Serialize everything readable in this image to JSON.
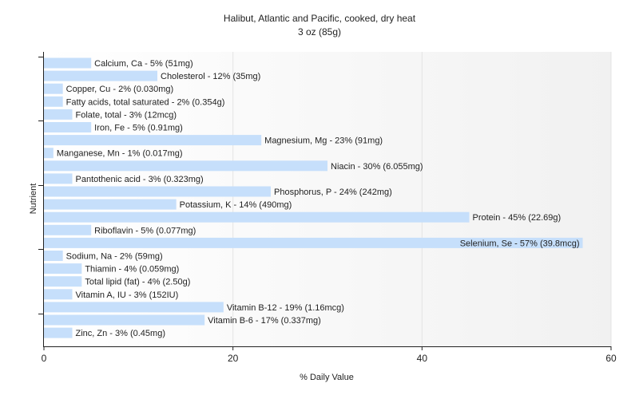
{
  "chart_data": {
    "type": "bar",
    "orientation": "horizontal",
    "title": "Halibut, Atlantic and Pacific, cooked, dry heat",
    "subtitle": "3 oz (85g)",
    "xlabel": "% Daily Value",
    "ylabel": "Nutrient",
    "xlim": [
      0,
      60
    ],
    "xticks": [
      "0",
      "20",
      "40",
      "60"
    ],
    "grid": true,
    "bar_color": "#c6dffb",
    "categories": [
      "Calcium, Ca",
      "Cholesterol",
      "Copper, Cu",
      "Fatty acids, total saturated",
      "Folate, total",
      "Iron, Fe",
      "Magnesium, Mg",
      "Manganese, Mn",
      "Niacin",
      "Pantothenic acid",
      "Phosphorus, P",
      "Potassium, K",
      "Protein",
      "Riboflavin",
      "Selenium, Se",
      "Sodium, Na",
      "Thiamin",
      "Total lipid (fat)",
      "Vitamin A, IU",
      "Vitamin B-12",
      "Vitamin B-6",
      "Zinc, Zn"
    ],
    "values": [
      5,
      12,
      2,
      2,
      3,
      5,
      23,
      1,
      30,
      3,
      24,
      14,
      45,
      5,
      57,
      2,
      4,
      4,
      3,
      19,
      17,
      3
    ],
    "data_labels": [
      "Calcium, Ca - 5% (51mg)",
      "Cholesterol - 12% (35mg)",
      "Copper, Cu - 2% (0.030mg)",
      "Fatty acids, total saturated - 2% (0.354g)",
      "Folate, total - 3% (12mcg)",
      "Iron, Fe - 5% (0.91mg)",
      "Magnesium, Mg - 23% (91mg)",
      "Manganese, Mn - 1% (0.017mg)",
      "Niacin - 30% (6.055mg)",
      "Pantothenic acid - 3% (0.323mg)",
      "Phosphorus, P - 24% (242mg)",
      "Potassium, K - 14% (490mg)",
      "Protein - 45% (22.69g)",
      "Riboflavin - 5% (0.077mg)",
      "Selenium, Se - 57% (39.8mcg)",
      "Sodium, Na - 2% (59mg)",
      "Thiamin - 4% (0.059mg)",
      "Total lipid (fat) - 4% (2.50g)",
      "Vitamin A, IU - 3% (152IU)",
      "Vitamin B-12 - 19% (1.16mcg)",
      "Vitamin B-6 - 17% (0.337mg)",
      "Zinc, Zn - 3% (0.45mg)"
    ]
  }
}
